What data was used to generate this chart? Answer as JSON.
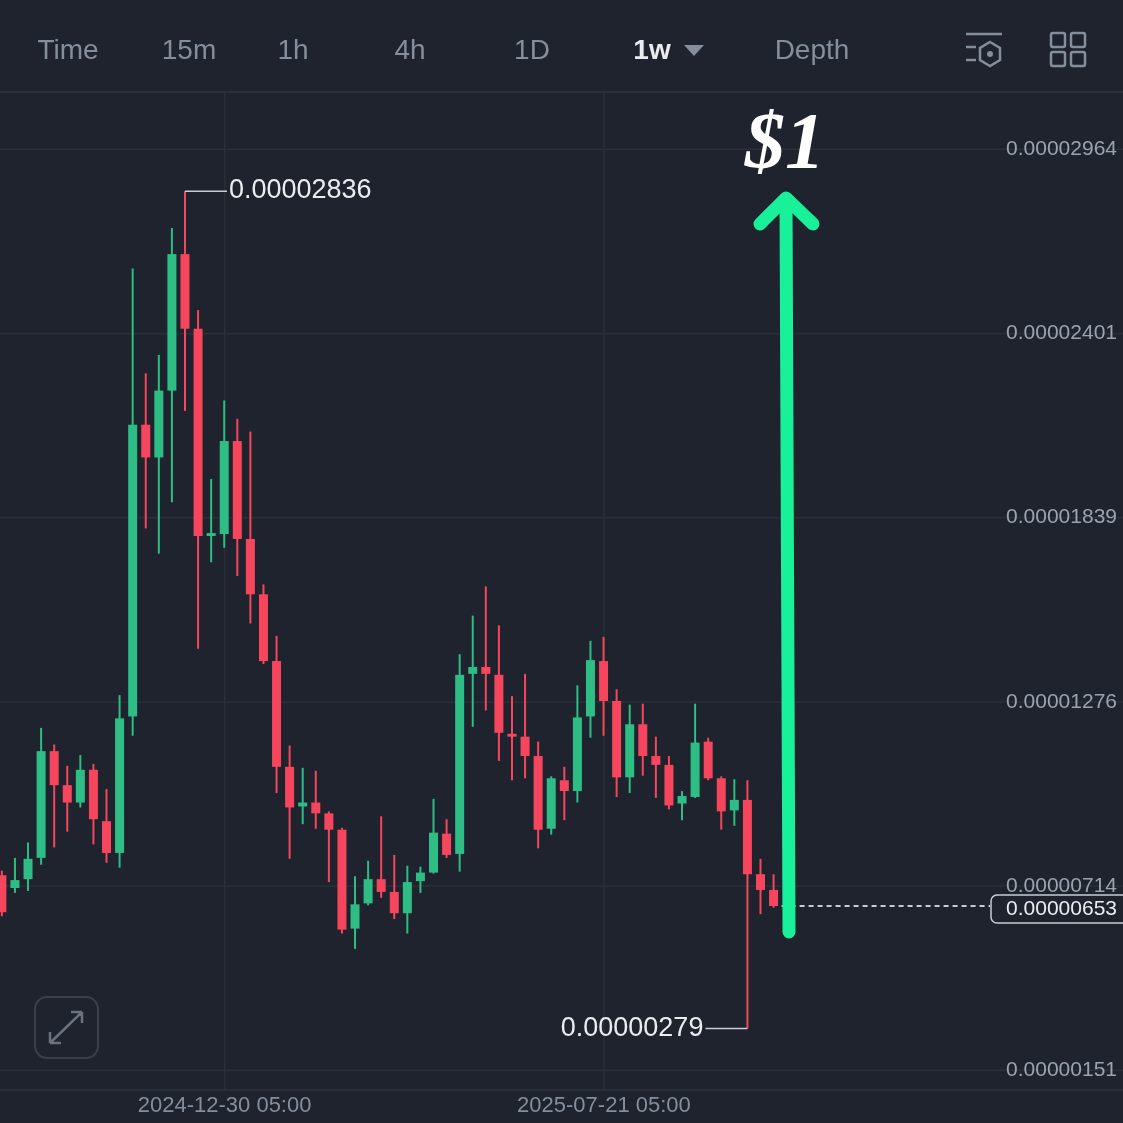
{
  "chart_data": {
    "type": "candlestick",
    "x": [
      "2024-09-02",
      "2024-09-09",
      "2024-09-16",
      "2024-09-23",
      "2024-09-30",
      "2024-10-07",
      "2024-10-14",
      "2024-10-21",
      "2024-10-28",
      "2024-11-04",
      "2024-11-11",
      "2024-11-18",
      "2024-11-25",
      "2024-12-02",
      "2024-12-09",
      "2024-12-16",
      "2024-12-23",
      "2024-12-30",
      "2025-01-06",
      "2025-01-13",
      "2025-01-20",
      "2025-01-27",
      "2025-02-03",
      "2025-02-10",
      "2025-02-17",
      "2025-02-24",
      "2025-03-03",
      "2025-03-10",
      "2025-03-17",
      "2025-03-24",
      "2025-03-31",
      "2025-04-07",
      "2025-04-14",
      "2025-04-21",
      "2025-04-28",
      "2025-05-05",
      "2025-05-12",
      "2025-05-19",
      "2025-05-26",
      "2025-06-02",
      "2025-06-09",
      "2025-06-16",
      "2025-06-23",
      "2025-06-30",
      "2025-07-07",
      "2025-07-14",
      "2025-07-21",
      "2025-07-28",
      "2025-08-04",
      "2025-08-11",
      "2025-08-18",
      "2025-08-25",
      "2025-09-01",
      "2025-09-08",
      "2025-09-15",
      "2025-09-22",
      "2025-09-29",
      "2025-10-06",
      "2025-10-13",
      "2025-10-20"
    ],
    "ohlc": [
      [
        7.47e-06,
        7.61e-06,
        6.22e-06,
        6.34e-06
      ],
      [
        7.08e-06,
        8e-06,
        6.93e-06,
        7.32e-06
      ],
      [
        7.35e-06,
        8.47e-06,
        6.99e-06,
        7.97e-06
      ],
      [
        8e-06,
        1.197e-05,
        7.79e-06,
        1.126e-05
      ],
      [
        1.126e-05,
        1.146e-05,
        8.32e-06,
        1.022e-05
      ],
      [
        1.022e-05,
        1.081e-05,
        8.8e-06,
        9.69e-06
      ],
      [
        9.69e-06,
        1.114e-05,
        9.54e-06,
        1.069e-05
      ],
      [
        1.069e-05,
        1.087e-05,
        8.41e-06,
        9.18e-06
      ],
      [
        9.12e-06,
        1.01e-05,
        7.85e-06,
        8.15e-06
      ],
      [
        8.15e-06,
        1.297e-05,
        7.7e-06,
        1.226e-05
      ],
      [
        1.232e-05,
        2.6e-05,
        1.173e-05,
        2.123e-05
      ],
      [
        2.123e-05,
        2.28e-05,
        1.806e-05,
        2.023e-05
      ],
      [
        2.023e-05,
        2.336e-05,
        1.729e-05,
        2.227e-05
      ],
      [
        2.227e-05,
        2.724e-05,
        1.886e-05,
        2.644e-05
      ],
      [
        2.644e-05,
        2.836e-05,
        2.165e-05,
        2.416e-05
      ],
      [
        2.416e-05,
        2.473e-05,
        1.439e-05,
        1.783e-05
      ],
      [
        1.783e-05,
        1.957e-05,
        1.703e-05,
        1.792e-05
      ],
      [
        1.789e-05,
        2.197e-05,
        1.747e-05,
        2.073e-05
      ],
      [
        2.073e-05,
        2.141e-05,
        1.661e-05,
        1.774e-05
      ],
      [
        1.774e-05,
        2.102e-05,
        1.516e-05,
        1.605e-05
      ],
      [
        1.605e-05,
        1.635e-05,
        1.392e-05,
        1.401e-05
      ],
      [
        1.401e-05,
        1.478e-05,
        9.98e-06,
        1.078e-05
      ],
      [
        1.078e-05,
        1.143e-05,
        7.97e-06,
        9.54e-06
      ],
      [
        9.57e-06,
        1.075e-05,
        9.03e-06,
        9.69e-06
      ],
      [
        9.69e-06,
        1.066e-05,
        8.89e-06,
        9.36e-06
      ],
      [
        9.36e-06,
        9.42e-06,
        7.26e-06,
        8.86e-06
      ],
      [
        8.86e-06,
        8.92e-06,
        5.69e-06,
        5.81e-06
      ],
      [
        5.84e-06,
        7.44e-06,
        5.22e-06,
        6.58e-06
      ],
      [
        6.61e-06,
        7.91e-06,
        6.55e-06,
        7.35e-06
      ],
      [
        7.35e-06,
        9.27e-06,
        6.78e-06,
        6.96e-06
      ],
      [
        6.96e-06,
        8.09e-06,
        6.13e-06,
        6.31e-06
      ],
      [
        6.31e-06,
        7.76e-06,
        5.69e-06,
        7.26e-06
      ],
      [
        7.29e-06,
        7.73e-06,
        6.93e-06,
        7.55e-06
      ],
      [
        7.55e-06,
        9.8e-06,
        7.52e-06,
        8.77e-06
      ],
      [
        8.74e-06,
        9.18e-06,
        8e-06,
        8.09e-06
      ],
      [
        8.12e-06,
        1.422e-05,
        7.58e-06,
        1.359e-05
      ],
      [
        1.362e-05,
        1.54e-05,
        1.2e-05,
        1.383e-05
      ],
      [
        1.383e-05,
        1.629e-05,
        1.25e-05,
        1.362e-05
      ],
      [
        1.359e-05,
        1.51e-05,
        1.096e-05,
        1.182e-05
      ],
      [
        1.179e-05,
        1.294e-05,
        1.037e-05,
        1.17e-05
      ],
      [
        1.17e-05,
        1.362e-05,
        1.043e-05,
        1.111e-05
      ],
      [
        1.111e-05,
        1.155e-05,
        8.29e-06,
        8.86e-06
      ],
      [
        8.89e-06,
        1.049e-05,
        8.71e-06,
        1.043e-05
      ],
      [
        1.037e-05,
        1.078e-05,
        9.15e-06,
        1.004e-05
      ],
      [
        1.004e-05,
        1.327e-05,
        9.69e-06,
        1.229e-05
      ],
      [
        1.232e-05,
        1.463e-05,
        1.167e-05,
        1.404e-05
      ],
      [
        1.401e-05,
        1.475e-05,
        1.173e-05,
        1.279e-05
      ],
      [
        1.279e-05,
        1.315e-05,
        9.86e-06,
        1.046e-05
      ],
      [
        1.046e-05,
        1.268e-05,
        9.98e-06,
        1.208e-05
      ],
      [
        1.208e-05,
        1.271e-05,
        1.051e-05,
        1.111e-05
      ],
      [
        1.111e-05,
        1.17e-05,
        9.83e-06,
        1.084e-05
      ],
      [
        1.084e-05,
        1.111e-05,
        9.48e-06,
        9.6e-06
      ],
      [
        9.66e-06,
        1.004e-05,
        9.15e-06,
        9.89e-06
      ],
      [
        9.86e-06,
        1.271e-05,
        9.83e-06,
        1.152e-05
      ],
      [
        1.155e-05,
        1.167e-05,
        1.037e-05,
        1.043e-05
      ],
      [
        1.043e-05,
        1.049e-05,
        8.86e-06,
        9.42e-06
      ],
      [
        9.45e-06,
        1.04e-05,
        8.98e-06,
        9.77e-06
      ],
      [
        9.77e-06,
        1.037e-05,
        2.79e-06,
        7.5e-06
      ],
      [
        7.5e-06,
        7.97e-06,
        6.28e-06,
        7.02e-06
      ],
      [
        7.02e-06,
        7.5e-06,
        6.48e-06,
        6.53e-06
      ]
    ],
    "colors": [
      "#f6465d",
      "#2ebd85",
      "#2ebd85",
      "#2ebd85",
      "#f6465d",
      "#f6465d",
      "#2ebd85",
      "#f6465d",
      "#f6465d",
      "#2ebd85",
      "#2ebd85",
      "#f6465d",
      "#2ebd85",
      "#2ebd85",
      "#f6465d",
      "#f6465d",
      "#2ebd85",
      "#2ebd85",
      "#f6465d",
      "#f6465d",
      "#f6465d",
      "#f6465d",
      "#f6465d",
      "#2ebd85",
      "#f6465d",
      "#f6465d",
      "#f6465d",
      "#2ebd85",
      "#2ebd85",
      "#f6465d",
      "#f6465d",
      "#2ebd85",
      "#2ebd85",
      "#2ebd85",
      "#f6465d",
      "#2ebd85",
      "#2ebd85",
      "#f6465d",
      "#f6465d",
      "#f6465d",
      "#f6465d",
      "#f6465d",
      "#2ebd85",
      "#f6465d",
      "#2ebd85",
      "#2ebd85",
      "#f6465d",
      "#f6465d",
      "#2ebd85",
      "#f6465d",
      "#f6465d",
      "#f6465d",
      "#2ebd85",
      "#2ebd85",
      "#f6465d",
      "#f6465d",
      "#2ebd85",
      "#f6465d",
      "#f6465d",
      "#f6465d"
    ],
    "xlim": [
      "2024-09-01",
      "2026-04-25"
    ],
    "xticks": [
      {
        "value": "2024-12-30T05:00",
        "label": "2024-12-30 05:00"
      },
      {
        "value": "2025-07-21T05:00",
        "label": "2025-07-21 05:00"
      }
    ],
    "ylim": [
      1.46e-06,
      3.136e-05
    ],
    "yticks": [
      {
        "value": 2.964e-05,
        "label": "0.00002964"
      },
      {
        "value": 2.401e-05,
        "label": "0.00002401"
      },
      {
        "value": 1.839e-05,
        "label": "0.00001839"
      },
      {
        "value": 1.276e-05,
        "label": "0.00001276"
      },
      {
        "value": 7.14e-06,
        "label": "0.00000714"
      },
      {
        "value": 1.51e-06,
        "label": "0.00000151"
      }
    ],
    "grid": true,
    "ref_lines": [
      {
        "axis": "y",
        "value": 6.53e-06,
        "label": "0.00000653",
        "line_style": "dashed",
        "color": "#c8ccd4"
      }
    ],
    "annotations": [
      "Time",
      "15m",
      "1h",
      "4h",
      "1D",
      "1w",
      "Depth",
      "$1",
      {
        "text": "0.00002836",
        "x": "2024-12-09",
        "y": 2.836e-05
      },
      {
        "text": "0.00000279",
        "x": "2025-10-06",
        "y": 2.79e-06
      }
    ]
  }
}
